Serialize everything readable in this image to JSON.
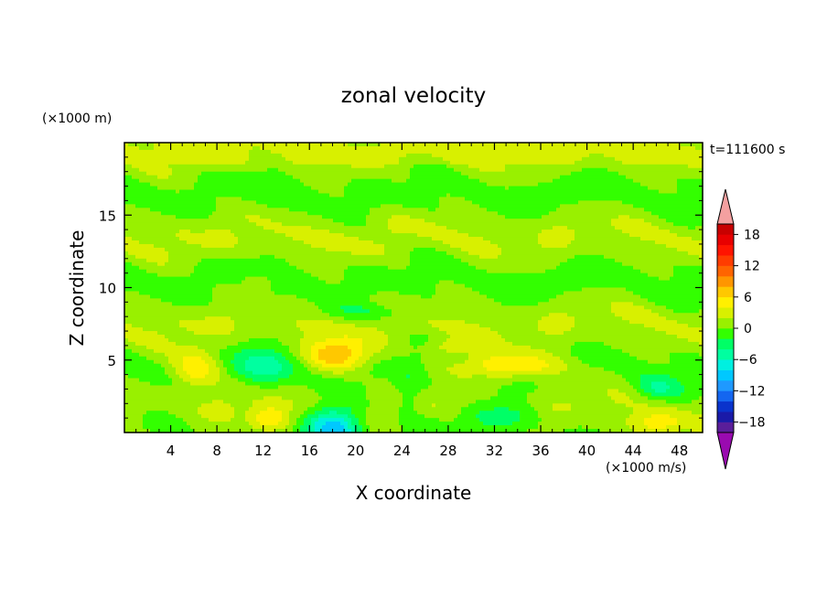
{
  "chart_data": {
    "type": "heatmap",
    "title": "zonal velocity",
    "xlabel": "X coordinate",
    "ylabel": "Z coordinate",
    "x_units": "(×1000 m/s)",
    "y_units": "(×1000 m)",
    "time_label": "t=111600 s",
    "xlim": [
      0,
      50
    ],
    "ylim": [
      0,
      20
    ],
    "x_ticks": [
      4,
      8,
      12,
      16,
      20,
      24,
      28,
      32,
      36,
      40,
      44,
      48
    ],
    "y_ticks": [
      5,
      10,
      15
    ],
    "colorbar": {
      "levels": [
        -20,
        -18,
        -16,
        -14,
        -12,
        -10,
        -8,
        -6,
        -4,
        -2,
        0,
        2,
        4,
        6,
        8,
        10,
        12,
        14,
        16,
        18,
        20
      ],
      "tick_labels": [
        18,
        12,
        6,
        0,
        -6,
        -12,
        -18
      ],
      "colors": [
        "#5a1e9a",
        "#1a1aa8",
        "#0a33cc",
        "#1466f0",
        "#1f99ff",
        "#00c8ff",
        "#00f0e0",
        "#00ffa0",
        "#00ff66",
        "#33ff00",
        "#99f000",
        "#d8f000",
        "#fff000",
        "#ffc800",
        "#ff9600",
        "#ff6400",
        "#ff3c00",
        "#ff1400",
        "#e80000",
        "#c80000"
      ],
      "under_color": "#9a0ab0",
      "over_color": "#f4a0a0"
    },
    "features": [
      {
        "x": 6.2,
        "z": 4.4,
        "sx": 2.0,
        "sz": 1.3,
        "u": 6.5
      },
      {
        "x": 18.5,
        "z": 5.3,
        "sx": 2.8,
        "sz": 1.1,
        "u": 7.5
      },
      {
        "x": 28.0,
        "z": 5.9,
        "sx": 2.0,
        "sz": 0.6,
        "u": 3.5
      },
      {
        "x": 33.5,
        "z": 4.6,
        "sx": 5.0,
        "sz": 0.9,
        "u": 6.5
      },
      {
        "x": 12.5,
        "z": 0.9,
        "sx": 1.6,
        "sz": 0.9,
        "u": 5.0
      },
      {
        "x": 46.0,
        "z": 0.6,
        "sx": 2.0,
        "sz": 0.7,
        "u": 4.0
      },
      {
        "x": 11.5,
        "z": 10.4,
        "sx": 1.2,
        "sz": 0.5,
        "u": 3.0
      },
      {
        "x": 18.0,
        "z": 0.4,
        "sx": 2.5,
        "sz": 1.4,
        "u": -11.0
      },
      {
        "x": 3.0,
        "z": 0.6,
        "sx": 2.5,
        "sz": 1.0,
        "u": -3.5
      },
      {
        "x": 32.0,
        "z": 1.0,
        "sx": 4.0,
        "sz": 1.1,
        "u": -5.0
      },
      {
        "x": 46.0,
        "z": 3.0,
        "sx": 2.0,
        "sz": 0.9,
        "u": -4.0
      },
      {
        "x": 12.0,
        "z": 4.5,
        "sx": 2.5,
        "sz": 1.3,
        "u": -4.5
      },
      {
        "x": 24.5,
        "z": 2.5,
        "sx": 1.4,
        "sz": 1.5,
        "u": -3.0
      },
      {
        "x": 22.0,
        "z": 8.3,
        "sx": 6.0,
        "sz": 0.6,
        "u": -2.5
      }
    ]
  }
}
